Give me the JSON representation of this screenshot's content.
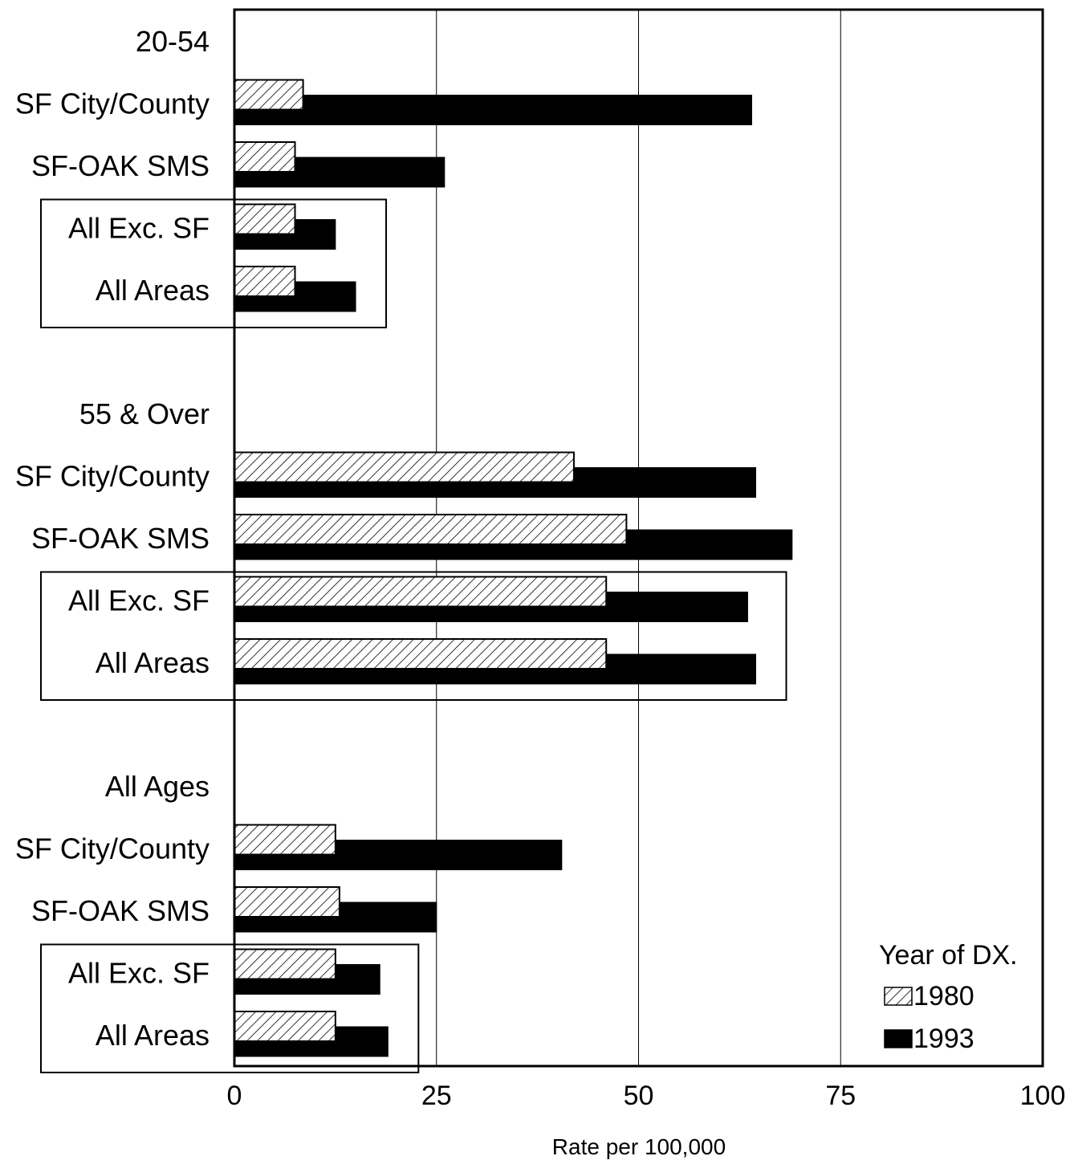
{
  "chart_data": {
    "type": "bar",
    "orientation": "horizontal",
    "groups": [
      {
        "label": "20-54",
        "categories": [
          "SF City/County",
          "SF-OAK SMS",
          "All Exc. SF",
          "All Areas"
        ],
        "boxed_categories": [
          "All Exc. SF",
          "All Areas"
        ],
        "series": [
          {
            "name": "1980",
            "values": [
              8.5,
              7.5,
              7.5,
              7.5
            ]
          },
          {
            "name": "1993",
            "values": [
              64.0,
              26.0,
              12.5,
              15.0
            ]
          }
        ]
      },
      {
        "label": "55 & Over",
        "categories": [
          "SF City/County",
          "SF-OAK SMS",
          "All Exc. SF",
          "All Areas"
        ],
        "boxed_categories": [
          "All Exc. SF",
          "All Areas"
        ],
        "series": [
          {
            "name": "1980",
            "values": [
              42.0,
              48.5,
              46.0,
              46.0
            ]
          },
          {
            "name": "1993",
            "values": [
              64.5,
              69.0,
              63.5,
              64.5
            ]
          }
        ]
      },
      {
        "label": "All Ages",
        "categories": [
          "SF City/County",
          "SF-OAK SMS",
          "All Exc. SF",
          "All Areas"
        ],
        "boxed_categories": [
          "All Exc. SF",
          "All Areas"
        ],
        "series": [
          {
            "name": "1980",
            "values": [
              12.5,
              13.0,
              12.5,
              12.5
            ]
          },
          {
            "name": "1993",
            "values": [
              40.5,
              25.0,
              18.0,
              19.0
            ]
          }
        ]
      }
    ],
    "xlabel": "Rate per 100,000",
    "xlim": [
      0,
      100
    ],
    "xticks": [
      "0",
      "25",
      "50",
      "75",
      "100"
    ],
    "grid": true,
    "legend": {
      "title": "Year of DX.",
      "placement": "bottom-right",
      "entries": [
        {
          "name": "1980",
          "style": "hatched"
        },
        {
          "name": "1993",
          "style": "solid"
        }
      ]
    },
    "colors": {
      "1980": "#ffffff",
      "1993": "#000000"
    }
  }
}
